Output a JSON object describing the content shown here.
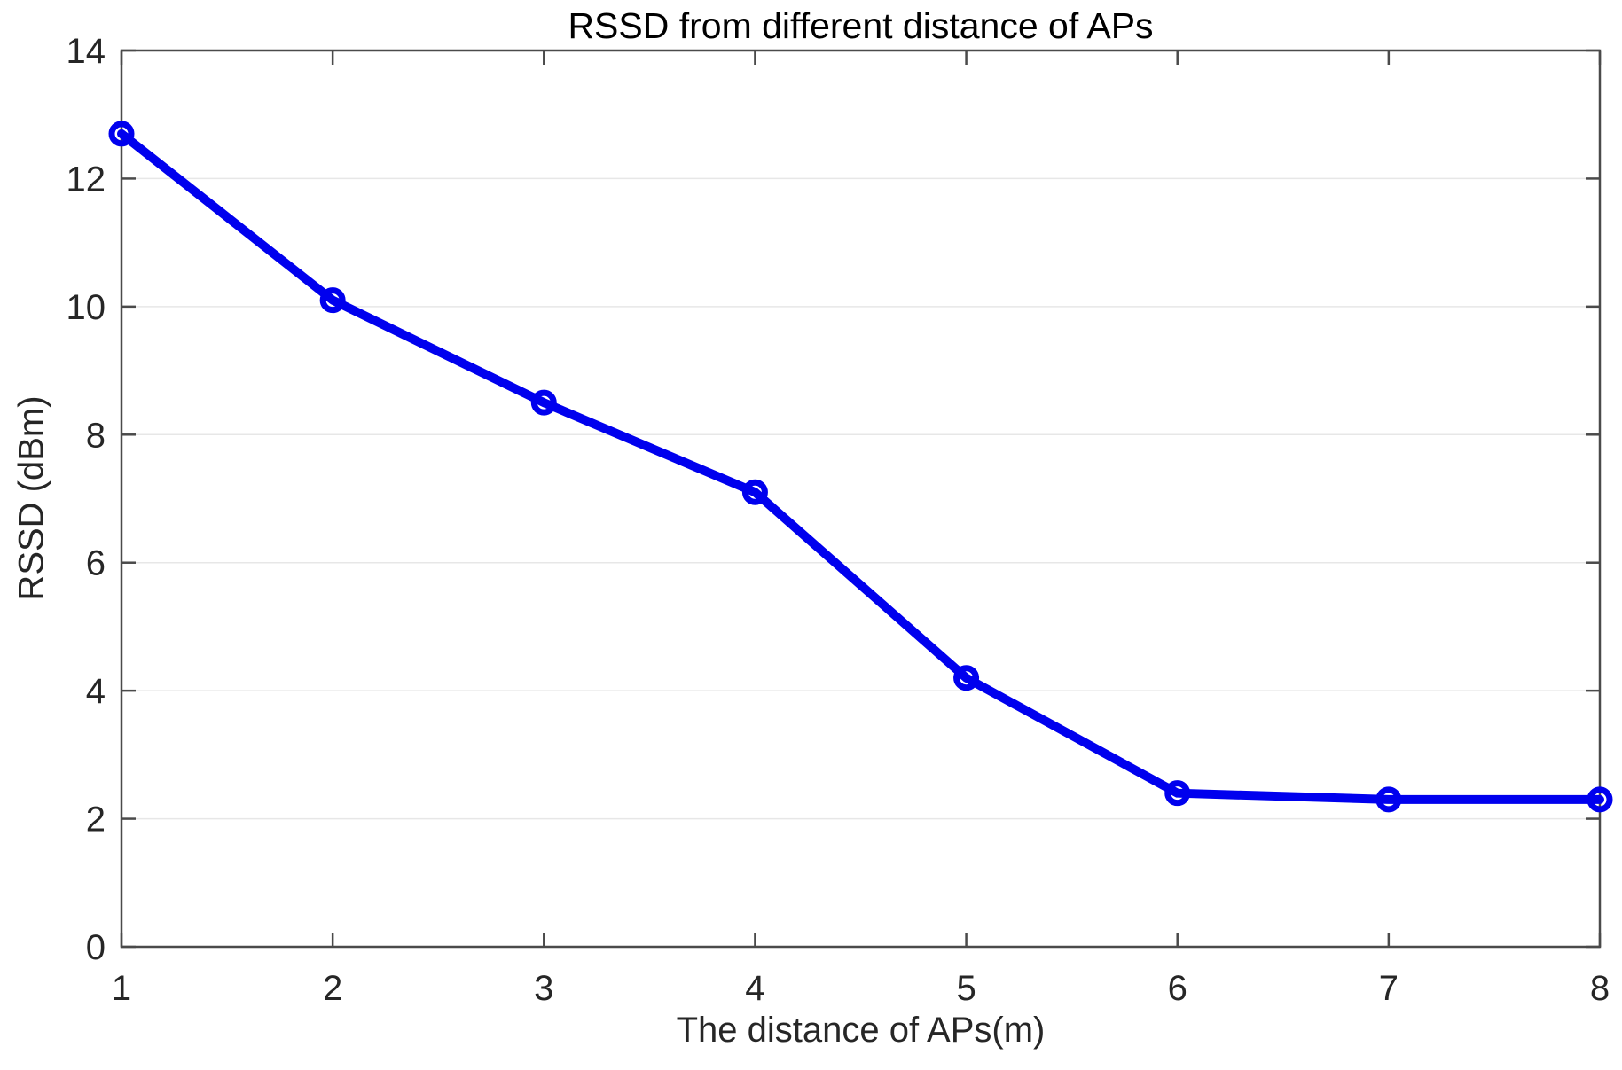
{
  "figure": {
    "background": "#ffffff"
  },
  "chart_data": {
    "type": "line",
    "title": "RSSD from different distance of APs",
    "xlabel": "The distance of APs(m)",
    "ylabel": "RSSD (dBm)",
    "x": [
      1,
      2,
      3,
      4,
      5,
      6,
      7,
      8
    ],
    "series": [
      {
        "name": "RSSD",
        "values": [
          12.7,
          10.1,
          8.5,
          7.1,
          4.2,
          2.4,
          2.3,
          2.3
        ],
        "color": "#0000EE",
        "marker": "open-circle"
      }
    ],
    "xlim": [
      1,
      8
    ],
    "ylim": [
      0,
      14
    ],
    "x_ticks": [
      1,
      2,
      3,
      4,
      5,
      6,
      7,
      8
    ],
    "y_ticks": [
      0,
      2,
      4,
      6,
      8,
      10,
      12,
      14
    ],
    "grid": "horizontal-only",
    "legend_position": "none",
    "box": "on",
    "tick_direction": "in",
    "styles": {
      "axis_color": "#4a4a4a",
      "tick_label_color": "#262626",
      "grid_color": "#e7e7e7",
      "title_color": "#000000"
    }
  }
}
